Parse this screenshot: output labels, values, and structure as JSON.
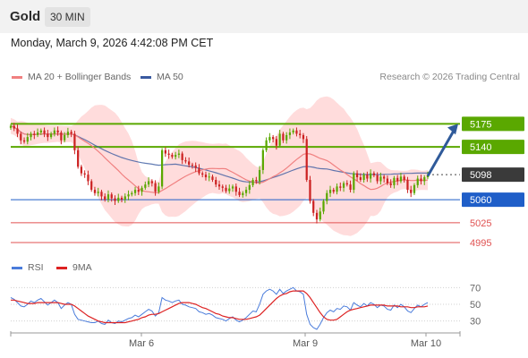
{
  "header": {
    "title": "Gold",
    "timeframe": "30 MIN"
  },
  "datetime": "Monday, March 9, 2026 4:42:08 PM CET",
  "legend": {
    "ma20_label": "MA 20 + Bollinger Bands",
    "ma50_label": "MA 50",
    "rsi_label": "RSI",
    "ma9_label": "9MA"
  },
  "credit": "Research © 2026 Trading Central",
  "colors": {
    "resistance": "#5aa800",
    "support": "#1f5ec8",
    "lower_support": "#e05252",
    "ma20": "#f08080",
    "ma50": "#3a5aa0",
    "band_fill": "#ffd6d6",
    "bull_candle": "#5aa800",
    "bear_candle": "#cc2222",
    "arrow": "#2f5a9a",
    "rsi": "#4a7cdb",
    "ma9": "#dd2222"
  },
  "chart_data": [
    {
      "type": "candlestick",
      "title": "Gold",
      "timeframe": "30 MIN",
      "ylim": [
        4980,
        5200
      ],
      "x_ticks": [
        "Mar 6",
        "Mar 9",
        "Mar 10"
      ],
      "current_price": 5098,
      "levels": [
        {
          "label": "5175",
          "value": 5175,
          "kind": "resistance"
        },
        {
          "label": "5140",
          "value": 5140,
          "kind": "resistance"
        },
        {
          "label": "5098",
          "value": 5098,
          "kind": "current"
        },
        {
          "label": "5060",
          "value": 5060,
          "kind": "pivot"
        },
        {
          "label": "5025",
          "value": 5025,
          "kind": "support"
        },
        {
          "label": "4995",
          "value": 4995,
          "kind": "support"
        }
      ],
      "arrow": {
        "direction": "up",
        "from": 5096,
        "to": 5175
      },
      "series": [
        {
          "name": "MA 20 + Bollinger Bands"
        },
        {
          "name": "MA 50"
        }
      ],
      "close": [
        5172,
        5168,
        5160,
        5150,
        5148,
        5155,
        5160,
        5158,
        5162,
        5165,
        5160,
        5155,
        5160,
        5165,
        5162,
        5150,
        5158,
        5163,
        5160,
        5135,
        5110,
        5100,
        5098,
        5088,
        5075,
        5070,
        5072,
        5065,
        5060,
        5068,
        5062,
        5058,
        5063,
        5060,
        5065,
        5068,
        5070,
        5075,
        5072,
        5078,
        5083,
        5088,
        5085,
        5072,
        5080,
        5135,
        5130,
        5128,
        5125,
        5128,
        5130,
        5120,
        5118,
        5113,
        5112,
        5108,
        5100,
        5098,
        5094,
        5095,
        5090,
        5083,
        5080,
        5078,
        5073,
        5077,
        5080,
        5072,
        5067,
        5070,
        5075,
        5082,
        5090,
        5088,
        5105,
        5135,
        5150,
        5155,
        5152,
        5142,
        5160,
        5150,
        5158,
        5162,
        5165,
        5160,
        5158,
        5152,
        5090,
        5058,
        5040,
        5030,
        5042,
        5058,
        5070,
        5075,
        5072,
        5080,
        5078,
        5085,
        5083,
        5075,
        5100,
        5094,
        5090,
        5098,
        5092,
        5100,
        5097,
        5088,
        5095,
        5092,
        5085,
        5082,
        5093,
        5088,
        5095,
        5090,
        5075,
        5070,
        5082,
        5092,
        5088,
        5094,
        5098
      ]
    },
    {
      "type": "line",
      "title": "",
      "ylim": [
        20,
        80
      ],
      "y_ticks": [
        70,
        50,
        30
      ],
      "series": [
        {
          "name": "RSI",
          "values": [
            58,
            56,
            52,
            48,
            47,
            50,
            54,
            52,
            55,
            57,
            53,
            49,
            52,
            55,
            52,
            45,
            49,
            52,
            50,
            38,
            32,
            31,
            30,
            29,
            28,
            28,
            30,
            27,
            26,
            31,
            28,
            27,
            30,
            29,
            31,
            33,
            34,
            37,
            35,
            38,
            41,
            44,
            42,
            36,
            40,
            58,
            55,
            54,
            52,
            54,
            55,
            50,
            49,
            47,
            46,
            45,
            41,
            40,
            38,
            39,
            37,
            34,
            33,
            32,
            30,
            33,
            35,
            31,
            29,
            31,
            34,
            38,
            42,
            41,
            50,
            62,
            66,
            68,
            66,
            62,
            68,
            63,
            66,
            68,
            70,
            66,
            65,
            62,
            38,
            26,
            22,
            20,
            26,
            34,
            40,
            43,
            41,
            45,
            44,
            48,
            47,
            43,
            52,
            49,
            47,
            51,
            48,
            52,
            50,
            46,
            49,
            48,
            44,
            43,
            49,
            46,
            50,
            47,
            42,
            40,
            45,
            49,
            47,
            50,
            52
          ]
        },
        {
          "name": "9MA",
          "values": [
            55,
            55,
            54,
            53,
            52,
            51,
            51,
            51,
            52,
            52,
            52,
            52,
            52,
            52,
            52,
            51,
            50,
            50,
            50,
            48,
            45,
            42,
            39,
            36,
            34,
            32,
            30,
            29,
            28,
            28,
            28,
            28,
            28,
            28,
            28,
            29,
            30,
            31,
            32,
            34,
            35,
            37,
            38,
            38,
            39,
            41,
            43,
            45,
            47,
            49,
            51,
            52,
            52,
            52,
            51,
            50,
            48,
            46,
            45,
            43,
            41,
            39,
            38,
            36,
            35,
            34,
            34,
            33,
            32,
            32,
            32,
            33,
            34,
            35,
            37,
            41,
            45,
            49,
            53,
            57,
            60,
            62,
            63,
            65,
            66,
            66,
            66,
            66,
            63,
            58,
            52,
            46,
            40,
            35,
            32,
            31,
            31,
            32,
            35,
            38,
            41,
            43,
            44,
            45,
            46,
            47,
            48,
            49,
            49,
            49,
            49,
            49,
            48,
            48,
            48,
            48,
            47,
            47,
            47,
            46,
            46,
            47,
            47,
            47,
            48
          ]
        }
      ]
    }
  ]
}
